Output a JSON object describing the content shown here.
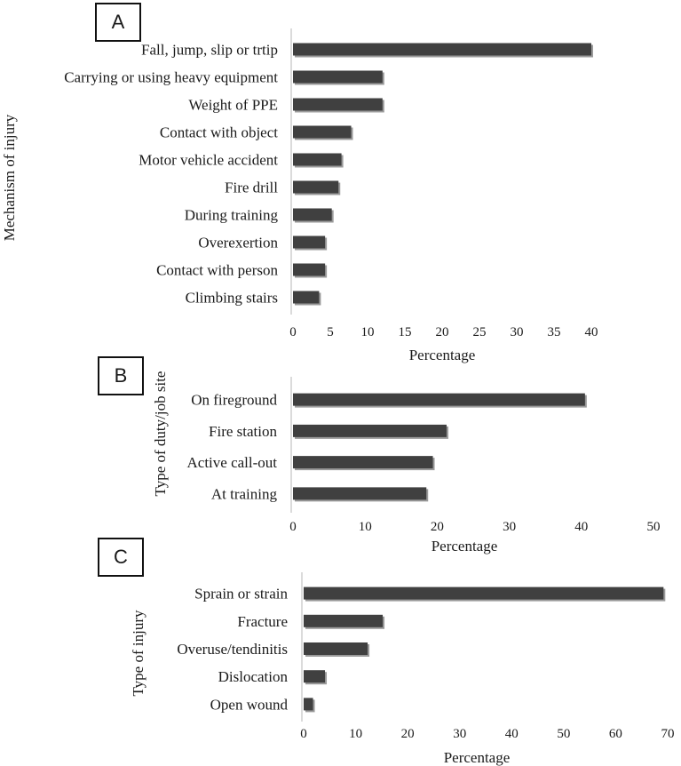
{
  "chart_data": [
    {
      "panel": "A",
      "type": "bar",
      "orientation": "horizontal",
      "ylabel": "Mechanism of injury",
      "xlabel": "Percentage",
      "xlim": [
        0,
        40
      ],
      "xticks": [
        "0",
        "5",
        "10",
        "15",
        "20",
        "25",
        "30",
        "35",
        "40"
      ],
      "categories": [
        "Fall, jump, slip or trtip",
        "Carrying or using heavy equipment",
        "Weight of PPE",
        "Contact with object",
        "Motor vehicle accident",
        "Fire drill",
        "During training",
        "Overexertion",
        "Contact with person",
        "Climbing stairs"
      ],
      "values": [
        40,
        12,
        12,
        7.8,
        6.5,
        6.1,
        5.2,
        4.3,
        4.3,
        3.5
      ],
      "bar_color": "#404040",
      "grid": false
    },
    {
      "panel": "B",
      "type": "bar",
      "orientation": "horizontal",
      "ylabel": "Type of duty/job site",
      "xlabel": "Percentage",
      "xlim": [
        0,
        50
      ],
      "xticks": [
        "0",
        "10",
        "20",
        "30",
        "40",
        "50"
      ],
      "categories": [
        "On fireground",
        "Fire station",
        "Active call-out",
        "At training"
      ],
      "values": [
        40.5,
        21.3,
        19.4,
        18.5
      ],
      "bar_color": "#404040",
      "grid": false
    },
    {
      "panel": "C",
      "type": "bar",
      "orientation": "horizontal",
      "ylabel": "Type of injury",
      "xlabel": "Percentage",
      "xlim": [
        0,
        70
      ],
      "xticks": [
        "0",
        "10",
        "20",
        "30",
        "40",
        "50",
        "60",
        "70"
      ],
      "categories": [
        "Sprain or strain",
        "Fracture",
        "Overuse/tendinitis",
        "Dislocation",
        "Open wound"
      ],
      "values": [
        69.2,
        15.2,
        12.3,
        4.1,
        1.8
      ],
      "bar_color": "#404040",
      "grid": false
    }
  ]
}
